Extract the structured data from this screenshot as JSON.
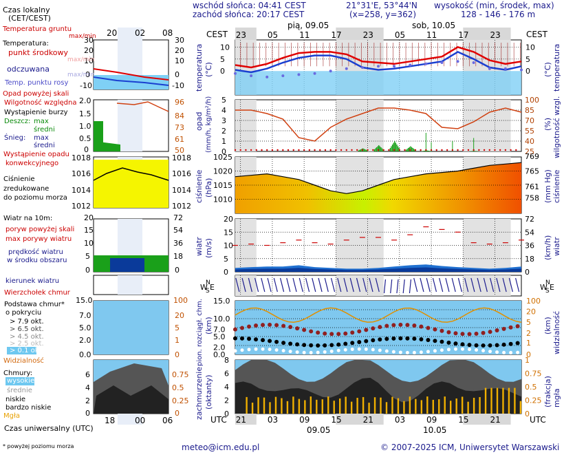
{
  "header": {
    "sunrise": "wschód słońca: 04:41 CEST",
    "sunset": "zachód słońca: 20:17 CEST",
    "coords": "21°31'E, 53°44'N",
    "grid": "(x=258,  y=362)",
    "elev_label": "wysokość (min, środek, max)",
    "elev_values": "128 - 146 - 176 m"
  },
  "legend": {
    "time_local": "Czas lokalny",
    "time_local_sub": "(CET/CEST)",
    "ground_temp": "Temperatura gruntu",
    "ground_temp_sub": "max/min",
    "temp_title": "Temperatura:",
    "temp_center": "punkt środkowy",
    "temp_range": "max/min",
    "temp_felt": "odczuwana",
    "temp_felt_range": "max/min",
    "dewpoint": "Temp. punktu rosy",
    "precip_above": "Opad powyżej skali",
    "humidity": "Wilgotność względna",
    "storm": "Wystąpienie burzy",
    "rain": "Deszcz:",
    "rain_max": "max",
    "rain_mean": "średni",
    "snow": "Śnieg:",
    "snow_max": "max",
    "snow_mean": "średni",
    "convective": "Wystąpienie opadu",
    "convective2": "konwekcyjnego",
    "pressure1": "Ciśnienie",
    "pressure2": "zredukowane",
    "pressure3": "do poziomu morza",
    "wind_title": "Wiatr na 10m:",
    "gust_above": "poryw powyżej skali",
    "gust_max": "max porywy wiatru",
    "wind_speed1": "prędkość wiatru",
    "wind_speed2": "w środku obszaru",
    "wind_dir": "kierunek wiatru",
    "cloud_top": "Wierzchołek chmur",
    "cloud_base1": "Podstawa chmur*",
    "cloud_base2": "o pokryciu",
    "okt79": "> 7.9 okt.",
    "okt65": "> 6.5 okt.",
    "okt45": "> 4.5 okt.",
    "okt25": "> 2.5 okt.",
    "okt01": "> 0.1 okt.",
    "visibility": "Widzialność",
    "clouds": "Chmury:",
    "cl_high": "wysokie",
    "cl_mid": "średnie",
    "cl_low": "niskie",
    "cl_vlow": "bardzo niskie",
    "fog": "Mgła",
    "utc": "Czas uniwersalny (UTC)",
    "footnote": "* powyżej poziomu morza",
    "lt_ticks": [
      "20",
      "02",
      "08"
    ],
    "utc_ticks": [
      "18",
      "00",
      "06"
    ]
  },
  "main": {
    "cest": "CEST",
    "utc": "UTC",
    "day1": "pią, 09.05",
    "day2": "sob, 10.05",
    "date1": "09.05",
    "date2": "10.05",
    "top_ticks": [
      "23",
      "05",
      "11",
      "17",
      "23",
      "05",
      "11",
      "17",
      "23",
      "05"
    ],
    "bottom_ticks": [
      "21",
      "03",
      "09",
      "15",
      "21",
      "03",
      "09",
      "15",
      "21",
      "03"
    ],
    "y_temp": "temperatura",
    "y_temp_unit": "(°C)",
    "y_precip": "opad",
    "y_precip_unit": "(mm/h, kg/m²/h)",
    "y_hum": "wilgotność wzgl.",
    "y_hum_unit": "(%)",
    "y_press": "ciśnienie",
    "y_press_unit": "(hPa)",
    "y_press_unit2": "(mm Hg)",
    "y_wind": "wiatr",
    "y_wind_unit": "(m/s)",
    "y_wind_unit2": "(km/h)",
    "y_cloud": "pion. rozciągł. chm.",
    "y_cloud_unit": "(km)",
    "y_vis": "widzialność",
    "y_vis_unit": "(km)",
    "y_cover": "zachmurzenie",
    "y_cover_unit": "(oktanty)",
    "y_fog": "mgła",
    "y_fog_unit": "(frakcja)",
    "compass": [
      "W",
      "N",
      "S",
      "E"
    ]
  },
  "footer": {
    "email": "meteo@icm.edu.pl",
    "copyright": "© 2007-2025 ICM, Uniwersytet Warszawski"
  },
  "chart_data": [
    {
      "type": "line",
      "title": "temperatura",
      "unit": "°C",
      "ylim": [
        -10,
        13
      ],
      "x_hours_utc": [
        0,
        3,
        6,
        9,
        12,
        15,
        18,
        21,
        24,
        27,
        30,
        33,
        36,
        39,
        42,
        45,
        48,
        51,
        54
      ],
      "series": [
        {
          "name": "punkt środkowy",
          "values": [
            2.5,
            1.5,
            3,
            5.5,
            7.5,
            8,
            8,
            7,
            4,
            3.5,
            3,
            4,
            5,
            6,
            10,
            8,
            4.5,
            3,
            4
          ]
        },
        {
          "name": "odczuwana",
          "values": [
            0.5,
            -0.5,
            1,
            3.5,
            5.5,
            6.5,
            6.5,
            5,
            1.5,
            0.5,
            1,
            2,
            3,
            4,
            8,
            5,
            1.5,
            0.5,
            2
          ]
        }
      ],
      "dewpoint_values": [
        -1,
        -2,
        -2.5,
        -2,
        -1.5,
        -1,
        0,
        1,
        1.5,
        2,
        2,
        2.5,
        3,
        3.5,
        4,
        3.5,
        1,
        1,
        0.5
      ]
    },
    {
      "type": "bar",
      "title": "opad / wilgotność wzgl.",
      "ylim": [
        0,
        5
      ],
      "rain_mean_values": [
        0,
        0,
        0,
        0,
        0,
        0,
        0,
        0,
        0.3,
        0.6,
        1.0,
        0.5,
        0.1,
        0,
        0,
        0.05,
        0,
        0,
        0
      ],
      "humidity_values": [
        85,
        85,
        80,
        72,
        45,
        40,
        60,
        72,
        80,
        88,
        88,
        85,
        80,
        60,
        58,
        68,
        82,
        88,
        82
      ],
      "humidity_ylim": [
        25,
        100
      ]
    },
    {
      "type": "area",
      "title": "ciśnienie",
      "unit": "hPa",
      "ylim": [
        1005,
        1025
      ],
      "values": [
        1018,
        1018.5,
        1019,
        1018,
        1017,
        1015,
        1013,
        1012,
        1013,
        1015,
        1017,
        1018,
        1019,
        1019.5,
        1020,
        1021,
        1022,
        1022.5,
        1023
      ]
    },
    {
      "type": "line",
      "title": "wiatr",
      "unit": "m/s",
      "ylim": [
        0,
        20
      ],
      "speed_values": [
        1.5,
        1.8,
        2.0,
        2.0,
        2.5,
        1.8,
        1.5,
        1.2,
        1.2,
        1.5,
        2.0,
        2.5,
        2.8,
        2.2,
        1.8,
        1.5,
        1.2,
        1.5,
        2.0
      ],
      "gust_values": [
        10,
        10.5,
        10,
        11,
        12,
        11,
        10.5,
        12,
        13,
        13,
        12,
        14,
        17,
        16,
        15,
        11,
        10.5,
        11,
        12
      ]
    }
  ]
}
